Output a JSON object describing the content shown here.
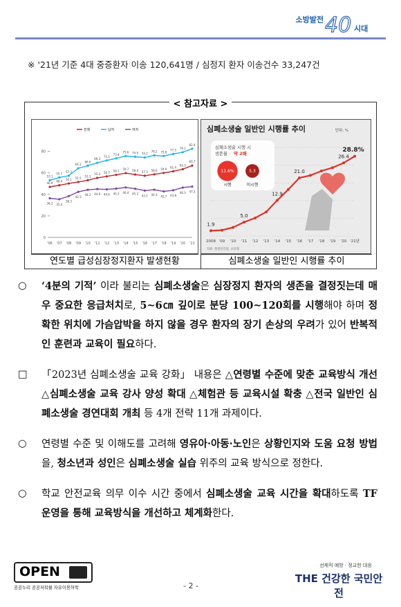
{
  "header": {
    "logo": [
      "소방발전",
      "40",
      "시대"
    ]
  },
  "note": "※ '21년 기준 4대 중증환자 이송 120,641명 / 심정지 환자 이송건수 33,247건",
  "reference": {
    "heading": "< 참고자료 >",
    "captions": [
      "연도별 급성심장정지환자 발생현황",
      "심폐소생술 일반인 시행률 추이"
    ]
  },
  "chart_data": [
    {
      "type": "line",
      "categories": [
        "'06",
        "'07",
        "'08",
        "'09",
        "'10",
        "'11",
        "'12",
        "'13",
        "'14",
        "'15",
        "'16",
        "'17",
        "'18",
        "'19",
        "'20",
        "'21"
      ],
      "series": [
        {
          "name": "전체",
          "color": "#c0262d",
          "values": [
            46.9,
            48.4,
            50.1,
            51.5,
            53.1,
            55.3,
            56.7,
            58.1,
            59.7,
            58.4,
            57.3,
            58.6,
            59.9,
            61.4,
            63.3,
            66.7
          ]
        },
        {
          "name": "남자",
          "color": "#1eb3e6",
          "values": [
            53.1,
            55.7,
            57.3,
            64.2,
            66.6,
            69.3,
            71.5,
            73.4,
            75.6,
            74.9,
            74.2,
            76.2,
            75.6,
            77.5,
            79.1,
            82.4
          ]
        },
        {
          "name": "여자",
          "color": "#7a4a9b",
          "values": [
            36.3,
            35.4,
            38.3,
            42.3,
            44.2,
            44.9,
            44.6,
            45.3,
            46.4,
            45.2,
            43.5,
            44.3,
            42.7,
            43.8,
            46.3,
            47.2
          ]
        }
      ],
      "ylim": [
        0,
        90
      ],
      "yticks": [
        0,
        20,
        40,
        60,
        80
      ]
    },
    {
      "type": "line",
      "title": "심폐소생술 일반인 시행률 추이",
      "unit": "단위: %",
      "categories": [
        "2008",
        "'09",
        "'10",
        "'11",
        "'12",
        "'13",
        "'14",
        "'15",
        "'16",
        "'17",
        "'18",
        "'19",
        "'20",
        "'21년"
      ],
      "values": [
        1.9,
        2.1,
        3.1,
        5.0,
        6.5,
        8.7,
        12.9,
        16.8,
        21.0,
        21.9,
        23.5,
        24.7,
        26.4,
        28.8
      ],
      "value_labels": [
        "1.9",
        null,
        null,
        "5.0",
        null,
        null,
        "12.9",
        null,
        "21.0",
        null,
        null,
        null,
        "26.4",
        "28.8%"
      ],
      "color": "#d9342b",
      "ylim": [
        0,
        32
      ],
      "inset": {
        "lines": [
          "심폐소생술 시행 시",
          "생존율 "
        ],
        "highlight": "약 2배",
        "items": [
          {
            "label": "시행",
            "value": 11.6,
            "value_label": "11.6%",
            "color": "#e8352b"
          },
          {
            "label": "미시행",
            "value": 5.3,
            "color": "#a8201b"
          }
        ]
      },
      "source": "자료: 질병관리청, 소방청"
    }
  ],
  "paragraphs": [
    {
      "marker": "○",
      "segments": [
        {
          "text": "‘4분의 기적’",
          "bold": true
        },
        {
          "text": " 이라 불리는 ",
          "bold": false
        },
        {
          "text": "심폐소생술",
          "bold": true
        },
        {
          "text": "은 ",
          "bold": false
        },
        {
          "text": "심장정지 환자의 생존을 결정짓는데 매우 중요한 응급처치",
          "bold": true
        },
        {
          "text": "로, ",
          "bold": false
        },
        {
          "text": "5~6㎝ 깊이로 분당 100~120회를 시행",
          "bold": true
        },
        {
          "text": "해야 하며 ",
          "bold": false
        },
        {
          "text": "정확한 위치에 가슴압박을 하지 않을 경우 환자의 장기 손상의 우려",
          "bold": true
        },
        {
          "text": "가 있어 ",
          "bold": false
        },
        {
          "text": "반복적인 훈련과 교육이 필요",
          "bold": true
        },
        {
          "text": "하다.",
          "bold": false
        }
      ]
    },
    {
      "marker": "□",
      "segments": [
        {
          "text": "「2023년 심폐소생술 교육 강화」 내용은 △",
          "bold": false
        },
        {
          "text": "연령별 수준에 맞춘 교육방식 개선",
          "bold": true
        },
        {
          "text": " △",
          "bold": false
        },
        {
          "text": "심폐소생술 교육 강사 양성 확대",
          "bold": true
        },
        {
          "text": " △",
          "bold": false
        },
        {
          "text": "체험관 등 교육시설 확충",
          "bold": true
        },
        {
          "text": " △",
          "bold": false
        },
        {
          "text": "전국 일반인 심폐소생술 경연대회 개최",
          "bold": true
        },
        {
          "text": " 등 4개 전략 11개 과제이다.",
          "bold": false
        }
      ]
    },
    {
      "marker": "○",
      "segments": [
        {
          "text": "연령별 수준 및 이해도를 고려해 ",
          "bold": false
        },
        {
          "text": "영유아·아동·노인",
          "bold": true
        },
        {
          "text": "은 ",
          "bold": false
        },
        {
          "text": "상황인지와 도움 요청 방법",
          "bold": true
        },
        {
          "text": "을, ",
          "bold": false
        },
        {
          "text": "청소년과 성인",
          "bold": true
        },
        {
          "text": "은 ",
          "bold": false
        },
        {
          "text": "심폐소생술 실습",
          "bold": true
        },
        {
          "text": " 위주의 교육 방식으로 정한다.",
          "bold": false
        }
      ]
    },
    {
      "marker": "○",
      "segments": [
        {
          "text": "학교 안전교육 의무 이수 시간 중에서 ",
          "bold": false
        },
        {
          "text": "심폐소생술 교육 시간을 확대",
          "bold": true
        },
        {
          "text": "하도록 ",
          "bold": false
        },
        {
          "text": "TF 운영을 통해 교육방식을 개선하고 체계화",
          "bold": true
        },
        {
          "text": "한다.",
          "bold": false
        }
      ]
    }
  ],
  "footer": {
    "open": "OPEN",
    "open_sub": "공공누리 공공저작물 자유이용허락",
    "page": "- 2 -",
    "slogan_small": "선제적 예방 · 정교한 대응",
    "slogan": "THE 건강한 국민안전"
  }
}
